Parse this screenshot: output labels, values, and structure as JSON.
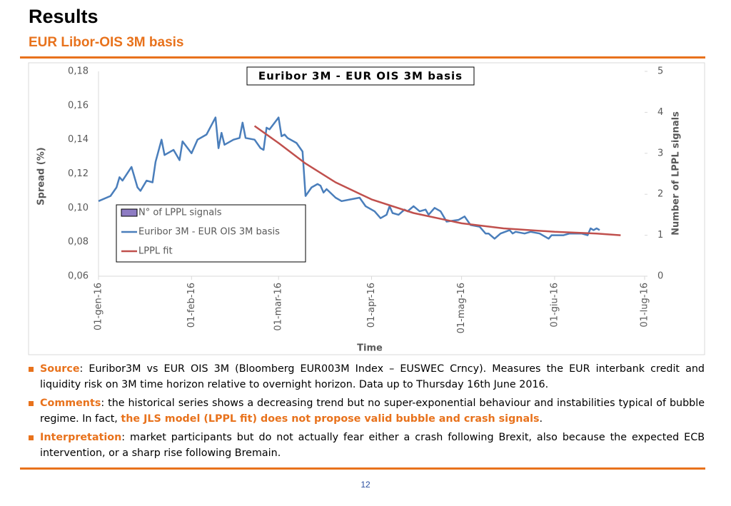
{
  "header": {
    "title": "Results",
    "subtitle": "EUR Libor-OIS 3M basis"
  },
  "chart_data": {
    "type": "line",
    "title": "Euribor 3M - EUR OIS 3M basis",
    "xlabel": "Time",
    "ylabel": "Spread (%)",
    "y2label": "Number of LPPL signals",
    "xlim": [
      "2016-01-01",
      "2016-07-01"
    ],
    "xticks": [
      {
        "value": "2016-01-01",
        "label": "01-gen-16"
      },
      {
        "value": "2016-02-01",
        "label": "01-feb-16"
      },
      {
        "value": "2016-03-01",
        "label": "01-mar-16"
      },
      {
        "value": "2016-04-01",
        "label": "01-apr-16"
      },
      {
        "value": "2016-05-01",
        "label": "01-mag-16"
      },
      {
        "value": "2016-06-01",
        "label": "01-giu-16"
      },
      {
        "value": "2016-07-01",
        "label": "01-lug-16"
      }
    ],
    "ylim": [
      0.06,
      0.18
    ],
    "yticks": [
      {
        "value": 0.06,
        "label": "0,06"
      },
      {
        "value": 0.08,
        "label": "0,08"
      },
      {
        "value": 0.1,
        "label": "0,10"
      },
      {
        "value": 0.12,
        "label": "0,12"
      },
      {
        "value": 0.14,
        "label": "0,14"
      },
      {
        "value": 0.16,
        "label": "0,16"
      },
      {
        "value": 0.18,
        "label": "0,18"
      }
    ],
    "y2lim": [
      0,
      5
    ],
    "y2ticks": [
      0,
      1,
      2,
      3,
      4,
      5
    ],
    "legend": "lower left",
    "series": [
      {
        "name": "N° of LPPL signals",
        "type": "bar",
        "axis": "y2",
        "color": "#8e7cc3",
        "x": [],
        "values": []
      },
      {
        "name": "Euribor 3M - EUR OIS 3M basis",
        "color": "#4a7ebb",
        "x": [
          "2016-01-01",
          "2016-01-05",
          "2016-01-07",
          "2016-01-08",
          "2016-01-09",
          "2016-01-12",
          "2016-01-14",
          "2016-01-15",
          "2016-01-17",
          "2016-01-19",
          "2016-01-20",
          "2016-01-22",
          "2016-01-23",
          "2016-01-26",
          "2016-01-28",
          "2016-01-29",
          "2016-02-01",
          "2016-02-03",
          "2016-02-06",
          "2016-02-09",
          "2016-02-10",
          "2016-02-11",
          "2016-02-12",
          "2016-02-15",
          "2016-02-17",
          "2016-02-18",
          "2016-02-19",
          "2016-02-22",
          "2016-02-24",
          "2016-02-25",
          "2016-02-26",
          "2016-02-27",
          "2016-03-01",
          "2016-03-02",
          "2016-03-03",
          "2016-03-04",
          "2016-03-07",
          "2016-03-09",
          "2016-03-10",
          "2016-03-12",
          "2016-03-14",
          "2016-03-15",
          "2016-03-16",
          "2016-03-17",
          "2016-03-20",
          "2016-03-22",
          "2016-03-25",
          "2016-03-28",
          "2016-03-30",
          "2016-04-02",
          "2016-04-04",
          "2016-04-06",
          "2016-04-07",
          "2016-04-08",
          "2016-04-10",
          "2016-04-12",
          "2016-04-13",
          "2016-04-15",
          "2016-04-17",
          "2016-04-19",
          "2016-04-20",
          "2016-04-22",
          "2016-04-24",
          "2016-04-26",
          "2016-04-30",
          "2016-05-02",
          "2016-05-04",
          "2016-05-07",
          "2016-05-09",
          "2016-05-10",
          "2016-05-12",
          "2016-05-14",
          "2016-05-17",
          "2016-05-18",
          "2016-05-19",
          "2016-05-22",
          "2016-05-24",
          "2016-05-27",
          "2016-05-30",
          "2016-05-31",
          "2016-06-04",
          "2016-06-06",
          "2016-06-10",
          "2016-06-12",
          "2016-06-13",
          "2016-06-14",
          "2016-06-15",
          "2016-06-16"
        ],
        "values": [
          0.104,
          0.107,
          0.112,
          0.118,
          0.116,
          0.124,
          0.112,
          0.11,
          0.116,
          0.115,
          0.127,
          0.14,
          0.131,
          0.134,
          0.128,
          0.139,
          0.132,
          0.14,
          0.143,
          0.153,
          0.135,
          0.144,
          0.137,
          0.14,
          0.141,
          0.15,
          0.141,
          0.14,
          0.135,
          0.134,
          0.147,
          0.146,
          0.153,
          0.142,
          0.143,
          0.141,
          0.138,
          0.133,
          0.107,
          0.112,
          0.114,
          0.113,
          0.109,
          0.111,
          0.106,
          0.104,
          0.105,
          0.106,
          0.101,
          0.098,
          0.094,
          0.096,
          0.101,
          0.097,
          0.096,
          0.099,
          0.098,
          0.101,
          0.098,
          0.099,
          0.096,
          0.1,
          0.098,
          0.092,
          0.093,
          0.095,
          0.09,
          0.089,
          0.085,
          0.085,
          0.082,
          0.085,
          0.087,
          0.085,
          0.086,
          0.085,
          0.086,
          0.085,
          0.082,
          0.084,
          0.084,
          0.085,
          0.085,
          0.084,
          0.088,
          0.087,
          0.088,
          0.087
        ]
      },
      {
        "name": "LPPL fit",
        "color": "#c0504d",
        "x": [
          "2016-02-22",
          "2016-03-01",
          "2016-03-10",
          "2016-03-20",
          "2016-04-01",
          "2016-04-15",
          "2016-05-01",
          "2016-05-15",
          "2016-06-01",
          "2016-06-15",
          "2016-06-23"
        ],
        "values": [
          0.148,
          0.138,
          0.126,
          0.115,
          0.105,
          0.097,
          0.091,
          0.088,
          0.086,
          0.085,
          0.084
        ]
      }
    ]
  },
  "bullets": [
    {
      "label": "Source",
      "parts": [
        {
          "text": ": Euribor3M vs EUR OIS 3M (Bloomberg EUR003M Index – EUSWEC Crncy). Measures the EUR interbank credit and liquidity risk on 3M time horizon relative to overnight horizon. Data up to Thursday 16th June 2016."
        }
      ]
    },
    {
      "label": "Comments",
      "parts": [
        {
          "text": ": the historical series shows a decreasing trend but no super-exponential behaviour and instabilities typical of bubble regime. In fact, "
        },
        {
          "text": "the JLS model (LPPL fit) does not propose valid bubble and crash signals",
          "highlight": true
        },
        {
          "text": "."
        }
      ]
    },
    {
      "label": "Interpretation",
      "parts": [
        {
          "text": ": market participants but do not actually fear either a crash following Brexit, also because the expected ECB intervention, or a sharp rise following Bremain."
        }
      ]
    }
  ],
  "page_number": "12"
}
